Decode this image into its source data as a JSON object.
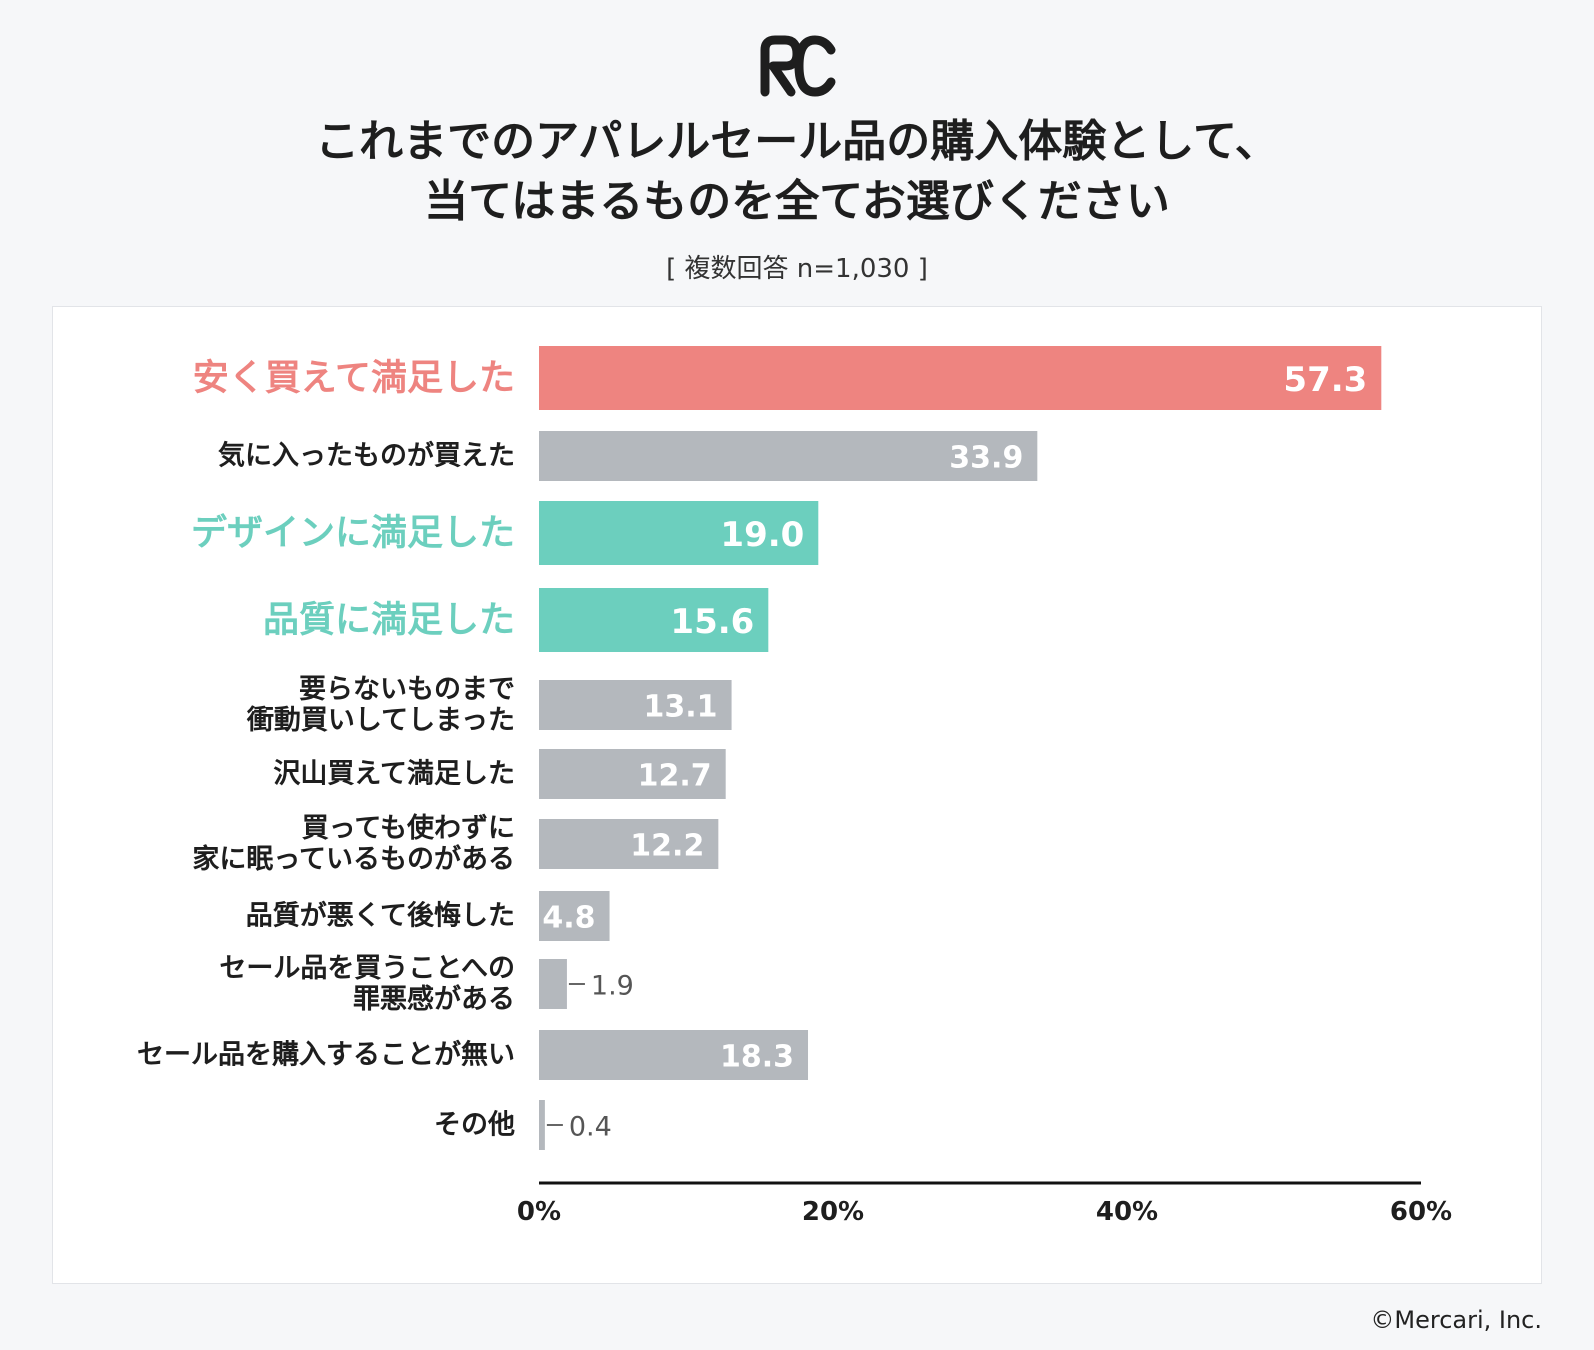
{
  "header": {
    "logo_icon": "rc-logo-icon",
    "title_line1": "これまでのアパレルセール品の購入体験として、",
    "title_line2": "当てはまるものを全てお選びください",
    "subtitle": "[ 複数回答 n=1,030 ]"
  },
  "footer": {
    "copyright": "©Mercari, Inc."
  },
  "colors": {
    "highlight_red": "#ee8480",
    "highlight_teal": "#6ccfbe",
    "default_bar": "#b4b8bd",
    "axis": "#111111"
  },
  "chart_data": {
    "type": "bar",
    "orientation": "horizontal",
    "title": "これまでのアパレルセール品の購入体験として、当てはまるものを全てお選びください",
    "xlabel": "",
    "ylabel": "",
    "xlim": [
      0,
      60
    ],
    "xticks": [
      "0%",
      "20%",
      "40%",
      "60%"
    ],
    "xtick_values": [
      0,
      20,
      40,
      60
    ],
    "grid": false,
    "categories": [
      [
        "安く買えて満足した"
      ],
      [
        "気に入ったものが買えた"
      ],
      [
        "デザインに満足した"
      ],
      [
        "品質に満足した"
      ],
      [
        "要らないものまで",
        "衝動買いしてしまった"
      ],
      [
        "沢山買えて満足した"
      ],
      [
        "買っても使わずに",
        "家に眠っているものがある"
      ],
      [
        "品質が悪くて後悔した"
      ],
      [
        "セール品を買うことへの",
        "罪悪感がある"
      ],
      [
        "セール品を購入することが無い"
      ],
      [
        "その他"
      ]
    ],
    "values": [
      57.3,
      33.9,
      19.0,
      15.6,
      13.1,
      12.7,
      12.2,
      4.8,
      1.9,
      18.3,
      0.4
    ],
    "value_labels": [
      "57.3",
      "33.9",
      "19.0",
      "15.6",
      "13.1",
      "12.7",
      "12.2",
      "4.8",
      "1.9",
      "18.3",
      "0.4"
    ],
    "highlight": [
      "red",
      "none",
      "teal",
      "teal",
      "none",
      "none",
      "none",
      "none",
      "none",
      "none",
      "none"
    ]
  }
}
